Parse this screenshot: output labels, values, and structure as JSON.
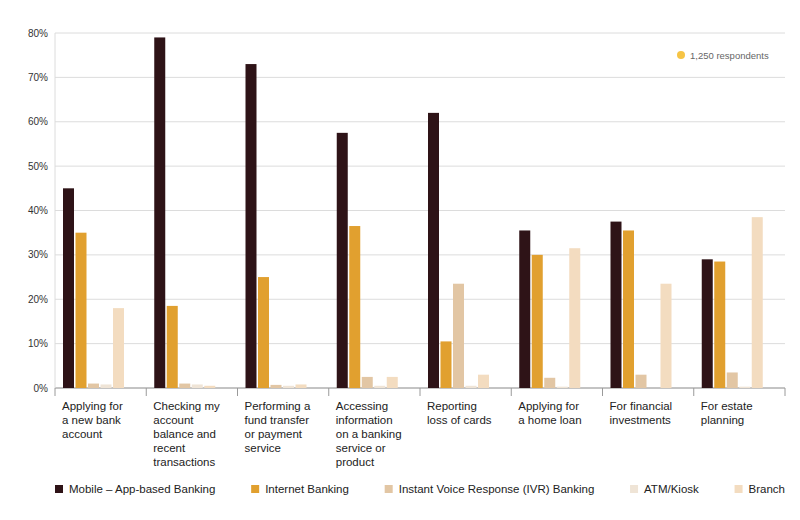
{
  "chart_data": {
    "type": "bar",
    "annotation": "1,250 respondents",
    "categories": [
      "Applying for a new bank account",
      "Checking my account balance and recent transactions",
      "Performing a fund transfer or payment service",
      "Accessing information on a banking service or product",
      "Reporting loss of cards",
      "Applying for a home loan",
      "For financial investments",
      "For estate planning"
    ],
    "series": [
      {
        "name": "Mobile – App-based Banking",
        "color": "#2e1317",
        "values": [
          45,
          79,
          73,
          57.5,
          62,
          35.5,
          37.5,
          29
        ]
      },
      {
        "name": "Internet Banking",
        "color": "#e1a02f",
        "values": [
          35,
          18.5,
          25,
          36.5,
          10.5,
          30,
          35.5,
          28.5
        ]
      },
      {
        "name": "Instant Voice Response (IVR) Banking",
        "color": "#e2c6a4",
        "values": [
          1,
          1,
          0.7,
          2.5,
          23.5,
          2.3,
          3,
          3.5
        ]
      },
      {
        "name": "ATM/Kiosk",
        "color": "#efe4d6",
        "values": [
          0.8,
          0.8,
          0.5,
          0.5,
          0.5,
          0.3,
          0,
          0.3
        ]
      },
      {
        "name": "Branch",
        "color": "#f3dcc0",
        "values": [
          18,
          0.5,
          0.8,
          2.5,
          3,
          31.5,
          23.5,
          38.5
        ]
      }
    ],
    "ylim": [
      0,
      80
    ],
    "yticks": [
      {
        "value": 0,
        "label": "0%"
      },
      {
        "value": 10,
        "label": "10%"
      },
      {
        "value": 20,
        "label": "20%"
      },
      {
        "value": 30,
        "label": "30%"
      },
      {
        "value": 40,
        "label": "40%"
      },
      {
        "value": 50,
        "label": "50%"
      },
      {
        "value": 60,
        "label": "60%"
      },
      {
        "value": 70,
        "label": "70%"
      },
      {
        "value": 80,
        "label": "80%"
      }
    ],
    "grid": true,
    "legend": "bottom"
  }
}
